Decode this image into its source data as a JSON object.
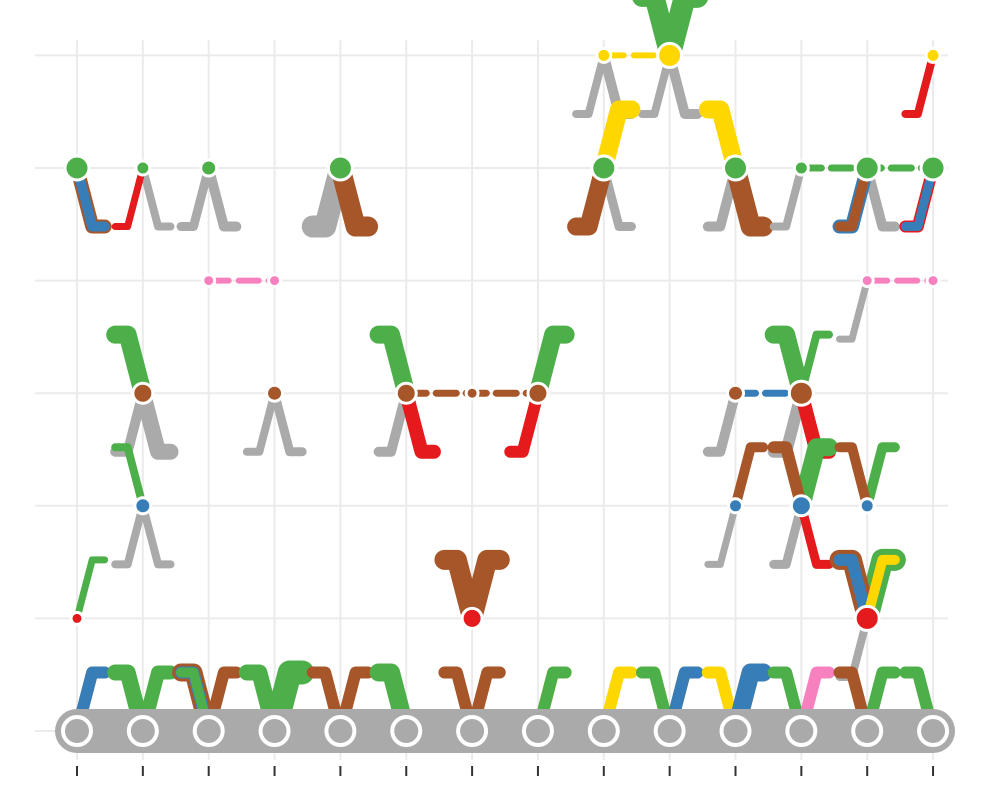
{
  "chart_data": {
    "type": "scatter",
    "title": "",
    "xlabel": "",
    "ylabel": "",
    "grid": true,
    "legend": "none",
    "x_columns": 14,
    "y_levels": 7,
    "xlim": [
      1,
      14
    ],
    "ylim": [
      0,
      6
    ],
    "palette": {
      "grey": "#aaaaaa",
      "green": "#4daf4a",
      "brown": "#a65628",
      "blue": "#377eb8",
      "red": "#e41a1c",
      "yellow": "#ffd700",
      "pink": "#f781bf",
      "grid": "#ebebeb",
      "tick": "#333333"
    },
    "base_nodes": [
      1,
      2,
      3,
      4,
      5,
      6,
      7,
      8,
      9,
      10,
      11,
      12,
      13,
      14
    ],
    "nodes": [
      {
        "x": 10,
        "y": 6,
        "color": "yellow",
        "size": 12
      },
      {
        "x": 9,
        "y": 6,
        "color": "yellow",
        "size": 7
      },
      {
        "x": 14,
        "y": 6,
        "color": "yellow",
        "size": 7
      },
      {
        "x": 1,
        "y": 5,
        "color": "green",
        "size": 12
      },
      {
        "x": 2,
        "y": 5,
        "color": "green",
        "size": 7
      },
      {
        "x": 3,
        "y": 5,
        "color": "green",
        "size": 8
      },
      {
        "x": 5,
        "y": 5,
        "color": "green",
        "size": 12
      },
      {
        "x": 9,
        "y": 5,
        "color": "green",
        "size": 12
      },
      {
        "x": 11,
        "y": 5,
        "color": "green",
        "size": 12
      },
      {
        "x": 12,
        "y": 5,
        "color": "green",
        "size": 7
      },
      {
        "x": 13,
        "y": 5,
        "color": "green",
        "size": 12
      },
      {
        "x": 14,
        "y": 5,
        "color": "green",
        "size": 12
      },
      {
        "x": 3,
        "y": 4,
        "color": "pink",
        "size": 6
      },
      {
        "x": 4,
        "y": 4,
        "color": "pink",
        "size": 6
      },
      {
        "x": 13,
        "y": 4,
        "color": "pink",
        "size": 6
      },
      {
        "x": 14,
        "y": 4,
        "color": "pink",
        "size": 6
      },
      {
        "x": 2,
        "y": 3,
        "color": "brown",
        "size": 10
      },
      {
        "x": 4,
        "y": 3,
        "color": "brown",
        "size": 8
      },
      {
        "x": 6,
        "y": 3,
        "color": "brown",
        "size": 10
      },
      {
        "x": 7,
        "y": 3,
        "color": "brown",
        "size": 6
      },
      {
        "x": 8,
        "y": 3,
        "color": "brown",
        "size": 10
      },
      {
        "x": 11,
        "y": 3,
        "color": "brown",
        "size": 8
      },
      {
        "x": 12,
        "y": 3,
        "color": "brown",
        "size": 12
      },
      {
        "x": 2,
        "y": 2,
        "color": "blue",
        "size": 8
      },
      {
        "x": 11,
        "y": 2,
        "color": "blue",
        "size": 7
      },
      {
        "x": 12,
        "y": 2,
        "color": "blue",
        "size": 10
      },
      {
        "x": 13,
        "y": 2,
        "color": "blue",
        "size": 7
      },
      {
        "x": 1,
        "y": 1,
        "color": "red",
        "size": 6
      },
      {
        "x": 7,
        "y": 1,
        "color": "red",
        "size": 10
      },
      {
        "x": 13,
        "y": 1,
        "color": "red",
        "size": 12
      }
    ],
    "horizontal_links": [
      {
        "y": 6,
        "x1": 9,
        "x2": 10,
        "color": "yellow",
        "width": 6
      },
      {
        "y": 5,
        "x1": 12,
        "x2": 14,
        "color": "green",
        "width": 7
      },
      {
        "y": 4,
        "x1": 3,
        "x2": 4,
        "color": "pink",
        "width": 6
      },
      {
        "y": 4,
        "x1": 13,
        "x2": 14,
        "color": "pink",
        "width": 6
      },
      {
        "y": 3,
        "x1": 6,
        "x2": 8,
        "color": "brown",
        "width": 7
      },
      {
        "y": 3,
        "x1": 11,
        "x2": 12,
        "color": "blue",
        "width": 7
      }
    ],
    "vertical_links": [
      {
        "x": 9,
        "y": 6,
        "color": "grey",
        "dir": 1,
        "w": 10
      },
      {
        "x": 9,
        "y": 6,
        "color": "grey",
        "dir": -1,
        "w": 8
      },
      {
        "x": 10,
        "y": 6,
        "color": "grey",
        "dir": 1,
        "w": 10
      },
      {
        "x": 10,
        "y": 6,
        "color": "grey",
        "dir": -1,
        "w": 8
      },
      {
        "x": 10,
        "y": 6,
        "color": "green",
        "dir": 1,
        "w": 22,
        "up": true
      },
      {
        "x": 10,
        "y": 6,
        "color": "green",
        "dir": -1,
        "w": 20,
        "up": true
      },
      {
        "x": 14,
        "y": 6,
        "color": "red",
        "dir": -1,
        "w": 8
      },
      {
        "x": 1,
        "y": 5,
        "color": "grey",
        "dir": 1,
        "w": 10
      },
      {
        "x": 1,
        "y": 5,
        "color": "brown",
        "dir": 1,
        "w": 14
      },
      {
        "x": 1,
        "y": 5,
        "color": "blue",
        "dir": 1,
        "w": 10
      },
      {
        "x": 2,
        "y": 5,
        "color": "grey",
        "dir": 1,
        "w": 8
      },
      {
        "x": 2,
        "y": 5,
        "color": "red",
        "dir": -1,
        "w": 7
      },
      {
        "x": 3,
        "y": 5,
        "color": "grey",
        "dir": 1,
        "w": 10
      },
      {
        "x": 3,
        "y": 5,
        "color": "grey",
        "dir": -1,
        "w": 9
      },
      {
        "x": 5,
        "y": 5,
        "color": "grey",
        "dir": -1,
        "w": 22
      },
      {
        "x": 5,
        "y": 5,
        "color": "grey",
        "dir": 1,
        "w": 18
      },
      {
        "x": 5,
        "y": 5,
        "color": "brown",
        "dir": 1,
        "w": 20
      },
      {
        "x": 9,
        "y": 5,
        "color": "grey",
        "dir": 1,
        "w": 9
      },
      {
        "x": 9,
        "y": 5,
        "color": "brown",
        "dir": -1,
        "w": 18
      },
      {
        "x": 9,
        "y": 5,
        "color": "yellow",
        "dir": 1,
        "w": 18,
        "up": true
      },
      {
        "x": 11,
        "y": 5,
        "color": "grey",
        "dir": -1,
        "w": 10
      },
      {
        "x": 11,
        "y": 5,
        "color": "brown",
        "dir": 1,
        "w": 20
      },
      {
        "x": 11,
        "y": 5,
        "color": "yellow",
        "dir": -1,
        "w": 18,
        "up": true
      },
      {
        "x": 12,
        "y": 5,
        "color": "grey",
        "dir": -1,
        "w": 8
      },
      {
        "x": 13,
        "y": 5,
        "color": "grey",
        "dir": 1,
        "w": 10
      },
      {
        "x": 13,
        "y": 5,
        "color": "blue",
        "dir": -1,
        "w": 14
      },
      {
        "x": 13,
        "y": 5,
        "color": "brown",
        "dir": -1,
        "w": 10
      },
      {
        "x": 14,
        "y": 5,
        "color": "red",
        "dir": -1,
        "w": 12
      },
      {
        "x": 14,
        "y": 5,
        "color": "blue",
        "dir": -1,
        "w": 9
      },
      {
        "x": 13,
        "y": 4,
        "color": "grey",
        "dir": -1,
        "w": 7
      },
      {
        "x": 2,
        "y": 3,
        "color": "grey",
        "dir": 1,
        "w": 16
      },
      {
        "x": 2,
        "y": 3,
        "color": "grey",
        "dir": -1,
        "w": 10
      },
      {
        "x": 2,
        "y": 3,
        "color": "green",
        "dir": -1,
        "w": 18,
        "up": true
      },
      {
        "x": 4,
        "y": 3,
        "color": "grey",
        "dir": 1,
        "w": 9
      },
      {
        "x": 4,
        "y": 3,
        "color": "grey",
        "dir": -1,
        "w": 8
      },
      {
        "x": 6,
        "y": 3,
        "color": "grey",
        "dir": -1,
        "w": 10
      },
      {
        "x": 6,
        "y": 3,
        "color": "red",
        "dir": 1,
        "w": 14
      },
      {
        "x": 6,
        "y": 3,
        "color": "green",
        "dir": -1,
        "w": 18,
        "up": true
      },
      {
        "x": 8,
        "y": 3,
        "color": "grey",
        "dir": -1,
        "w": 10
      },
      {
        "x": 8,
        "y": 3,
        "color": "red",
        "dir": -1,
        "w": 12
      },
      {
        "x": 8,
        "y": 3,
        "color": "green",
        "dir": 1,
        "w": 18,
        "up": true
      },
      {
        "x": 11,
        "y": 3,
        "color": "grey",
        "dir": -1,
        "w": 10
      },
      {
        "x": 12,
        "y": 3,
        "color": "grey",
        "dir": -1,
        "w": 12
      },
      {
        "x": 12,
        "y": 3,
        "color": "grey",
        "dir": 1,
        "w": 10
      },
      {
        "x": 12,
        "y": 3,
        "color": "red",
        "dir": 1,
        "w": 14
      },
      {
        "x": 12,
        "y": 3,
        "color": "green",
        "dir": -1,
        "w": 18,
        "up": true
      },
      {
        "x": 12,
        "y": 3,
        "color": "green",
        "dir": 1,
        "w": 8,
        "up": true
      },
      {
        "x": 2,
        "y": 2,
        "color": "grey",
        "dir": 1,
        "w": 8
      },
      {
        "x": 2,
        "y": 2,
        "color": "grey",
        "dir": -1,
        "w": 8
      },
      {
        "x": 2,
        "y": 2,
        "color": "green",
        "dir": -1,
        "w": 8,
        "up": true
      },
      {
        "x": 11,
        "y": 2,
        "color": "grey",
        "dir": -1,
        "w": 7
      },
      {
        "x": 11,
        "y": 2,
        "color": "brown",
        "dir": 1,
        "w": 10,
        "up": true
      },
      {
        "x": 12,
        "y": 2,
        "color": "grey",
        "dir": -1,
        "w": 9
      },
      {
        "x": 12,
        "y": 2,
        "color": "red",
        "dir": 1,
        "w": 9
      },
      {
        "x": 12,
        "y": 2,
        "color": "green",
        "dir": 1,
        "w": 18,
        "up": true
      },
      {
        "x": 12,
        "y": 2,
        "color": "brown",
        "dir": -1,
        "w": 12,
        "up": true
      },
      {
        "x": 13,
        "y": 2,
        "color": "green",
        "dir": 1,
        "w": 10,
        "up": true
      },
      {
        "x": 13,
        "y": 2,
        "color": "brown",
        "dir": -1,
        "w": 10,
        "up": true
      },
      {
        "x": 1,
        "y": 1,
        "color": "green",
        "dir": 1,
        "w": 7,
        "up": true
      },
      {
        "x": 7,
        "y": 1,
        "color": "brown",
        "dir": -1,
        "w": 20,
        "up": true
      },
      {
        "x": 7,
        "y": 1,
        "color": "brown",
        "dir": 1,
        "w": 20,
        "up": true
      },
      {
        "x": 13,
        "y": 1,
        "color": "grey",
        "dir": -1,
        "w": 8
      },
      {
        "x": 13,
        "y": 1,
        "color": "green",
        "dir": 1,
        "w": 22,
        "up": true
      },
      {
        "x": 13,
        "y": 1,
        "color": "brown",
        "dir": -1,
        "w": 20,
        "up": true
      },
      {
        "x": 13,
        "y": 1,
        "color": "blue",
        "dir": -1,
        "w": 12,
        "up": true
      },
      {
        "x": 13,
        "y": 1,
        "color": "yellow",
        "dir": 1,
        "w": 10,
        "up": true
      },
      {
        "x": 1,
        "y": 0,
        "color": "brown",
        "dir": 1,
        "w": 12,
        "up": true
      },
      {
        "x": 1,
        "y": 0,
        "color": "blue",
        "dir": 1,
        "w": 12,
        "up": true
      },
      {
        "x": 2,
        "y": 0,
        "color": "green",
        "dir": -1,
        "w": 16,
        "up": true
      },
      {
        "x": 2,
        "y": 0,
        "color": "green",
        "dir": 1,
        "w": 14,
        "up": true
      },
      {
        "x": 3,
        "y": 0,
        "color": "brown",
        "dir": -1,
        "w": 18,
        "up": true
      },
      {
        "x": 3,
        "y": 0,
        "color": "blue",
        "dir": -1,
        "w": 12,
        "up": true
      },
      {
        "x": 3,
        "y": 0,
        "color": "green",
        "dir": -1,
        "w": 10,
        "up": true
      },
      {
        "x": 3,
        "y": 0,
        "color": "brown",
        "dir": 1,
        "w": 12,
        "up": true
      },
      {
        "x": 4,
        "y": 0,
        "color": "green",
        "dir": -1,
        "w": 16,
        "up": true
      },
      {
        "x": 4,
        "y": 0,
        "color": "green",
        "dir": 1,
        "w": 24,
        "up": true
      },
      {
        "x": 5,
        "y": 0,
        "color": "brown",
        "dir": -1,
        "w": 12,
        "up": true
      },
      {
        "x": 5,
        "y": 0,
        "color": "brown",
        "dir": 1,
        "w": 12,
        "up": true
      },
      {
        "x": 6,
        "y": 0,
        "color": "green",
        "dir": -1,
        "w": 18,
        "up": true
      },
      {
        "x": 7,
        "y": 0,
        "color": "brown",
        "dir": -1,
        "w": 12,
        "up": true
      },
      {
        "x": 7,
        "y": 0,
        "color": "brown",
        "dir": 1,
        "w": 12,
        "up": true
      },
      {
        "x": 8,
        "y": 0,
        "color": "yellow",
        "dir": 1,
        "w": 12,
        "up": true
      },
      {
        "x": 8,
        "y": 0,
        "color": "green",
        "dir": 1,
        "w": 12,
        "up": true
      },
      {
        "x": 9,
        "y": 0,
        "color": "yellow",
        "dir": 1,
        "w": 12,
        "up": true
      },
      {
        "x": 10,
        "y": 0,
        "color": "yellow",
        "dir": -1,
        "w": 12,
        "up": true
      },
      {
        "x": 10,
        "y": 0,
        "color": "green",
        "dir": -1,
        "w": 12,
        "up": true
      },
      {
        "x": 10,
        "y": 0,
        "color": "green",
        "dir": 1,
        "w": 12,
        "up": true
      },
      {
        "x": 10,
        "y": 0,
        "color": "brown",
        "dir": 1,
        "w": 12,
        "up": true
      },
      {
        "x": 10,
        "y": 0,
        "color": "blue",
        "dir": 1,
        "w": 12,
        "up": true
      },
      {
        "x": 11,
        "y": 0,
        "color": "yellow",
        "dir": -1,
        "w": 12,
        "up": true
      },
      {
        "x": 11,
        "y": 0,
        "color": "green",
        "dir": 1,
        "w": 12,
        "up": true
      },
      {
        "x": 11,
        "y": 0,
        "color": "brown",
        "dir": 1,
        "w": 18,
        "up": true
      },
      {
        "x": 11,
        "y": 0,
        "color": "blue",
        "dir": 1,
        "w": 18,
        "up": true
      },
      {
        "x": 12,
        "y": 0,
        "color": "green",
        "dir": -1,
        "w": 12,
        "up": true
      },
      {
        "x": 12,
        "y": 0,
        "color": "pink",
        "dir": 1,
        "w": 12,
        "up": true
      },
      {
        "x": 13,
        "y": 0,
        "color": "brown",
        "dir": -1,
        "w": 12,
        "up": true
      },
      {
        "x": 13,
        "y": 0,
        "color": "green",
        "dir": 1,
        "w": 12,
        "up": true
      },
      {
        "x": 14,
        "y": 0,
        "color": "green",
        "dir": -1,
        "w": 12,
        "up": true
      }
    ]
  }
}
